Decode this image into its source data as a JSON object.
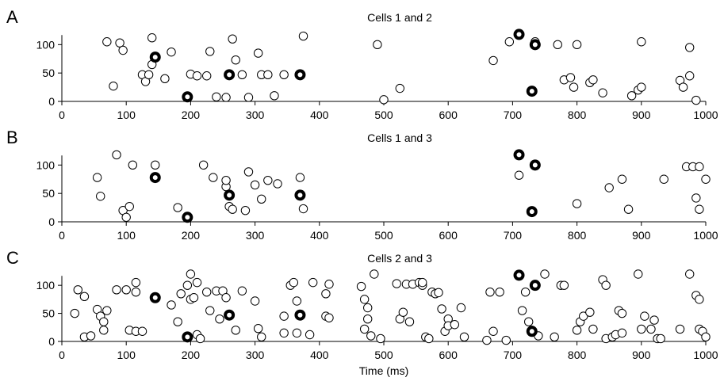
{
  "chart_data": [
    {
      "type": "scatter",
      "letter": "A",
      "title": "Cells 1 and 2",
      "xlim": [
        0,
        1000
      ],
      "ylim": [
        0,
        120
      ],
      "xticks": [
        0,
        100,
        200,
        300,
        400,
        500,
        600,
        700,
        800,
        900,
        1000
      ],
      "yticks": [
        0,
        50,
        100
      ],
      "open_points": [
        [
          70,
          105
        ],
        [
          90,
          103
        ],
        [
          95,
          90
        ],
        [
          140,
          112
        ],
        [
          80,
          27
        ],
        [
          125,
          47
        ],
        [
          130,
          35
        ],
        [
          135,
          47
        ],
        [
          140,
          65
        ],
        [
          160,
          40
        ],
        [
          170,
          87
        ],
        [
          200,
          48
        ],
        [
          210,
          45
        ],
        [
          225,
          45
        ],
        [
          230,
          88
        ],
        [
          240,
          8
        ],
        [
          255,
          7
        ],
        [
          265,
          110
        ],
        [
          270,
          73
        ],
        [
          280,
          47
        ],
        [
          290,
          7
        ],
        [
          305,
          85
        ],
        [
          310,
          47
        ],
        [
          320,
          47
        ],
        [
          330,
          10
        ],
        [
          345,
          47
        ],
        [
          375,
          115
        ],
        [
          490,
          100
        ],
        [
          500,
          3
        ],
        [
          525,
          23
        ],
        [
          670,
          72
        ],
        [
          695,
          105
        ],
        [
          735,
          105
        ],
        [
          770,
          100
        ],
        [
          780,
          38
        ],
        [
          790,
          42
        ],
        [
          795,
          25
        ],
        [
          800,
          100
        ],
        [
          820,
          33
        ],
        [
          825,
          38
        ],
        [
          840,
          15
        ],
        [
          885,
          10
        ],
        [
          895,
          20
        ],
        [
          900,
          25
        ],
        [
          900,
          105
        ],
        [
          960,
          37
        ],
        [
          965,
          25
        ],
        [
          975,
          45
        ],
        [
          975,
          95
        ],
        [
          985,
          2
        ]
      ],
      "highlight_points": [
        [
          145,
          78
        ],
        [
          195,
          8
        ],
        [
          260,
          47
        ],
        [
          370,
          47
        ],
        [
          710,
          118
        ],
        [
          730,
          18
        ],
        [
          735,
          100
        ]
      ]
    },
    {
      "type": "scatter",
      "letter": "B",
      "title": "Cells 1 and 3",
      "xlim": [
        0,
        1000
      ],
      "ylim": [
        0,
        120
      ],
      "xticks": [
        0,
        100,
        200,
        300,
        400,
        500,
        600,
        700,
        800,
        900,
        1000
      ],
      "yticks": [
        0,
        50,
        100
      ],
      "open_points": [
        [
          55,
          78
        ],
        [
          60,
          45
        ],
        [
          85,
          118
        ],
        [
          95,
          20
        ],
        [
          100,
          8
        ],
        [
          105,
          27
        ],
        [
          110,
          100
        ],
        [
          145,
          100
        ],
        [
          180,
          25
        ],
        [
          220,
          100
        ],
        [
          235,
          78
        ],
        [
          255,
          62
        ],
        [
          255,
          73
        ],
        [
          260,
          27
        ],
        [
          265,
          22
        ],
        [
          285,
          20
        ],
        [
          290,
          88
        ],
        [
          300,
          65
        ],
        [
          310,
          40
        ],
        [
          320,
          73
        ],
        [
          335,
          67
        ],
        [
          370,
          78
        ],
        [
          375,
          23
        ],
        [
          710,
          82
        ],
        [
          800,
          32
        ],
        [
          850,
          60
        ],
        [
          870,
          75
        ],
        [
          880,
          22
        ],
        [
          935,
          75
        ],
        [
          970,
          97
        ],
        [
          980,
          97
        ],
        [
          990,
          97
        ],
        [
          985,
          42
        ],
        [
          990,
          22
        ],
        [
          1000,
          75
        ]
      ],
      "highlight_points": [
        [
          145,
          78
        ],
        [
          195,
          8
        ],
        [
          260,
          47
        ],
        [
          370,
          47
        ],
        [
          710,
          118
        ],
        [
          730,
          18
        ],
        [
          735,
          100
        ]
      ]
    },
    {
      "type": "scatter",
      "letter": "C",
      "title": "Cells 2 and 3",
      "xlabel": "Time (ms)",
      "xlim": [
        0,
        1000
      ],
      "ylim": [
        0,
        120
      ],
      "xticks": [
        0,
        100,
        200,
        300,
        400,
        500,
        600,
        700,
        800,
        900,
        1000
      ],
      "yticks": [
        0,
        50,
        100
      ],
      "open_points": [
        [
          20,
          50
        ],
        [
          25,
          92
        ],
        [
          35,
          80
        ],
        [
          35,
          8
        ],
        [
          45,
          10
        ],
        [
          55,
          57
        ],
        [
          60,
          45
        ],
        [
          65,
          20
        ],
        [
          65,
          35
        ],
        [
          70,
          55
        ],
        [
          85,
          92
        ],
        [
          100,
          92
        ],
        [
          105,
          20
        ],
        [
          115,
          18
        ],
        [
          115,
          105
        ],
        [
          125,
          18
        ],
        [
          115,
          88
        ],
        [
          170,
          65
        ],
        [
          180,
          35
        ],
        [
          185,
          85
        ],
        [
          195,
          100
        ],
        [
          200,
          120
        ],
        [
          200,
          75
        ],
        [
          205,
          78
        ],
        [
          210,
          105
        ],
        [
          210,
          12
        ],
        [
          215,
          5
        ],
        [
          225,
          88
        ],
        [
          230,
          55
        ],
        [
          240,
          90
        ],
        [
          245,
          40
        ],
        [
          250,
          90
        ],
        [
          255,
          78
        ],
        [
          270,
          20
        ],
        [
          280,
          90
        ],
        [
          300,
          72
        ],
        [
          305,
          23
        ],
        [
          310,
          8
        ],
        [
          345,
          45
        ],
        [
          345,
          15
        ],
        [
          355,
          100
        ],
        [
          360,
          105
        ],
        [
          365,
          72
        ],
        [
          365,
          15
        ],
        [
          385,
          12
        ],
        [
          390,
          105
        ],
        [
          415,
          102
        ],
        [
          410,
          85
        ],
        [
          410,
          45
        ],
        [
          415,
          42
        ],
        [
          465,
          98
        ],
        [
          470,
          75
        ],
        [
          475,
          60
        ],
        [
          470,
          22
        ],
        [
          475,
          40
        ],
        [
          480,
          10
        ],
        [
          495,
          5
        ],
        [
          485,
          120
        ],
        [
          520,
          103
        ],
        [
          525,
          40
        ],
        [
          530,
          52
        ],
        [
          535,
          102
        ],
        [
          545,
          102
        ],
        [
          540,
          35
        ],
        [
          555,
          105
        ],
        [
          560,
          100
        ],
        [
          565,
          8
        ],
        [
          570,
          5
        ],
        [
          560,
          105
        ],
        [
          575,
          88
        ],
        [
          580,
          85
        ],
        [
          585,
          87
        ],
        [
          600,
          40
        ],
        [
          595,
          18
        ],
        [
          590,
          58
        ],
        [
          600,
          28
        ],
        [
          610,
          30
        ],
        [
          620,
          60
        ],
        [
          625,
          8
        ],
        [
          660,
          2
        ],
        [
          665,
          88
        ],
        [
          670,
          18
        ],
        [
          680,
          88
        ],
        [
          690,
          2
        ],
        [
          715,
          55
        ],
        [
          720,
          88
        ],
        [
          725,
          35
        ],
        [
          730,
          20
        ],
        [
          740,
          10
        ],
        [
          750,
          120
        ],
        [
          765,
          8
        ],
        [
          775,
          100
        ],
        [
          780,
          100
        ],
        [
          800,
          20
        ],
        [
          805,
          35
        ],
        [
          810,
          45
        ],
        [
          820,
          52
        ],
        [
          825,
          22
        ],
        [
          840,
          110
        ],
        [
          845,
          100
        ],
        [
          845,
          5
        ],
        [
          855,
          8
        ],
        [
          860,
          12
        ],
        [
          865,
          55
        ],
        [
          870,
          50
        ],
        [
          870,
          15
        ],
        [
          895,
          120
        ],
        [
          900,
          22
        ],
        [
          905,
          45
        ],
        [
          915,
          22
        ],
        [
          920,
          38
        ],
        [
          925,
          5
        ],
        [
          930,
          5
        ],
        [
          960,
          22
        ],
        [
          975,
          120
        ],
        [
          985,
          82
        ],
        [
          990,
          75
        ],
        [
          990,
          22
        ],
        [
          995,
          18
        ],
        [
          1000,
          8
        ]
      ],
      "highlight_points": [
        [
          145,
          78
        ],
        [
          195,
          8
        ],
        [
          260,
          47
        ],
        [
          370,
          47
        ],
        [
          710,
          118
        ],
        [
          730,
          18
        ],
        [
          735,
          100
        ]
      ]
    }
  ]
}
